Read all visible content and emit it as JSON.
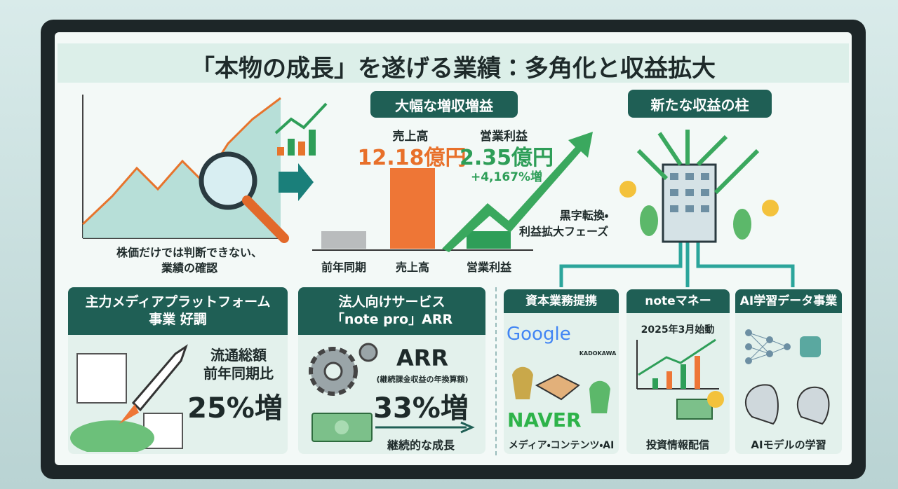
{
  "header": {
    "title": "「本物の成長」を遂げる業績：多角化と収益拡大"
  },
  "stock_check": {
    "caption_lines": [
      "株価だけでは判断できない、",
      "業績の確認"
    ]
  },
  "growth": {
    "heading": "大幅な増収増益",
    "sales_label": "売上高",
    "sales_value": "12.18億円",
    "profit_label": "営業利益",
    "profit_value": "2.35億円",
    "profit_change": "+4,167%増",
    "phase_lines": [
      "黒字転換・",
      "利益拡大フェーズ"
    ],
    "axis_labels": [
      "前年同期",
      "売上高",
      "営業利益"
    ]
  },
  "new_pillars": {
    "heading": "新たな収益の柱"
  },
  "panels": [
    {
      "title_lines": [
        "主力メディアプラットフォーム",
        "事業 好調"
      ],
      "lines": [
        "流通総額",
        "前年同期比"
      ],
      "highlight": "25%増"
    },
    {
      "title_lines": [
        "法人向けサービス",
        "「note pro」ARR"
      ],
      "lines": [
        "ARR",
        "(継続課金収益の年換算額)"
      ],
      "highlight": "33%増",
      "caption": "継続的な成長"
    },
    {
      "title": "資本業務提携",
      "logos": [
        "Google",
        "KADOKAWA",
        "NAVER"
      ],
      "caption": "メディア・コンテンツ・AI"
    },
    {
      "title": "noteマネー",
      "subtitle": "2025年3月始動",
      "caption": "投資情報配信"
    },
    {
      "title": "AI学習データ事業",
      "caption": "AIモデルの学習"
    }
  ]
}
